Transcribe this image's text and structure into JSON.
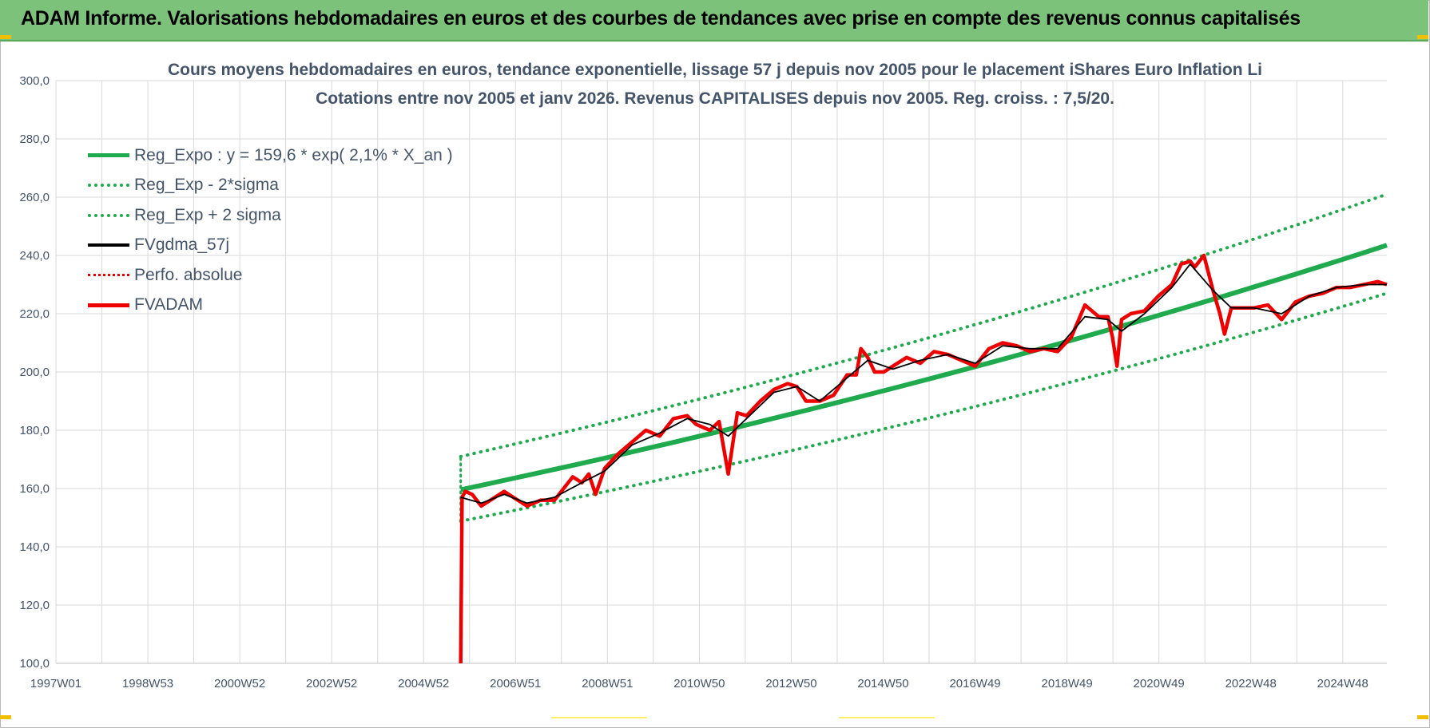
{
  "banner": {
    "title": "ADAM Informe. Valorisations hebdomadaires en euros et des courbes de tendances avec prise en compte des revenus connus capitalisés"
  },
  "colors": {
    "banner": "#7dc27b",
    "green": "#1faa4e",
    "red": "#ee0000",
    "black": "#000000",
    "grid": "#d9d9d9",
    "text": "#44546a"
  },
  "chart_data": {
    "type": "line",
    "title_line1": "Cours moyens hebdomadaires en euros, tendance exponentielle, lissage 57 j depuis nov 2005 pour le placement iShares Euro Inflation Li",
    "title_line2": "Cotations entre nov 2005 et janv 2026. Revenus CAPITALISES depuis nov 2005. Reg. croiss. : 7,5/20.",
    "x_tick_labels": [
      "1997W01",
      "1998W53",
      "2000W52",
      "2002W52",
      "2004W52",
      "2006W51",
      "2008W51",
      "2010W50",
      "2012W50",
      "2014W50",
      "2016W49",
      "2018W49",
      "2020W49",
      "2022W48",
      "2024W48"
    ],
    "x_range_years": [
      1997.0,
      2026.1
    ],
    "y_tick_labels": [
      "100,0",
      "120,0",
      "140,0",
      "160,0",
      "180,0",
      "200,0",
      "220,0",
      "240,0",
      "260,0",
      "280,0",
      "300,0"
    ],
    "ylim": [
      100,
      300
    ],
    "grid": true,
    "legend_position": "top-left",
    "legend": [
      {
        "label": "Reg_Expo : y = 159,6 * exp( 2,1% *  X_an )",
        "style": "solid",
        "color": "#1faa4e"
      },
      {
        "label": "Reg_Exp - 2*sigma",
        "style": "dotted",
        "color": "#1faa4e"
      },
      {
        "label": "Reg_Exp + 2 sigma",
        "style": "dotted",
        "color": "#1faa4e"
      },
      {
        "label": "FVgdma_57j",
        "style": "solid",
        "color": "#000000"
      },
      {
        "label": "Perfo. absolue",
        "style": "dotted",
        "color": "#ee0000"
      },
      {
        "label": "FVADAM",
        "style": "solid",
        "color": "#ee0000"
      }
    ],
    "series": [
      {
        "name": "Reg_Expo : y = 159,6 * exp( 2,1% *  X_an )",
        "x": [
          2005.85,
          2026.1
        ],
        "values": [
          159.6,
          243.5
        ]
      },
      {
        "name": "Reg_Exp - 2*sigma",
        "x": [
          2005.85,
          2026.1
        ],
        "values": [
          148.8,
          227.0
        ]
      },
      {
        "name": "Reg_Exp + 2 sigma",
        "x": [
          2005.85,
          2026.1
        ],
        "values": [
          171.0,
          261.0
        ]
      },
      {
        "name": "FVADAM",
        "x": [
          2005.85,
          2005.88,
          2005.95,
          2006.1,
          2006.3,
          2006.5,
          2006.8,
          2007.0,
          2007.3,
          2007.6,
          2007.9,
          2008.1,
          2008.3,
          2008.5,
          2008.65,
          2008.8,
          2009.0,
          2009.3,
          2009.6,
          2009.9,
          2010.2,
          2010.5,
          2010.8,
          2011.0,
          2011.3,
          2011.5,
          2011.7,
          2011.9,
          2012.1,
          2012.4,
          2012.7,
          2013.0,
          2013.2,
          2013.4,
          2013.7,
          2014.0,
          2014.3,
          2014.5,
          2014.6,
          2014.75,
          2014.9,
          2015.1,
          2015.3,
          2015.6,
          2015.9,
          2016.2,
          2016.5,
          2016.8,
          2017.1,
          2017.4,
          2017.7,
          2018.0,
          2018.3,
          2018.6,
          2018.9,
          2019.2,
          2019.5,
          2019.8,
          2020.0,
          2020.1,
          2020.2,
          2020.3,
          2020.5,
          2020.8,
          2021.1,
          2021.4,
          2021.6,
          2021.8,
          2021.9,
          2022.1,
          2022.3,
          2022.45,
          2022.55,
          2022.7,
          2022.9,
          2023.2,
          2023.5,
          2023.8,
          2024.1,
          2024.4,
          2024.7,
          2025.0,
          2025.3,
          2025.6,
          2025.9,
          2026.1
        ],
        "values": [
          100,
          157,
          159,
          158,
          154,
          156,
          159,
          157,
          154,
          156,
          156,
          160,
          164,
          162,
          165,
          158,
          167,
          172,
          176,
          180,
          178,
          184,
          185,
          182,
          180,
          183,
          165,
          186,
          185,
          190,
          194,
          196,
          195,
          190,
          190,
          192,
          199,
          199,
          208,
          205,
          200,
          200,
          202,
          205,
          203,
          207,
          206,
          204,
          202,
          208,
          210,
          209,
          207,
          208,
          207,
          212,
          223,
          219,
          219,
          212,
          202,
          218,
          220,
          221,
          226,
          230,
          237,
          238,
          236,
          240,
          228,
          220,
          213,
          222,
          222,
          222,
          223,
          218,
          224,
          226,
          227,
          229,
          229,
          230,
          231,
          230
        ]
      },
      {
        "name": "FVgdma_57j",
        "x": [
          2005.85,
          2006.3,
          2006.8,
          2007.3,
          2007.9,
          2008.5,
          2009.0,
          2009.6,
          2010.2,
          2010.8,
          2011.3,
          2011.7,
          2012.1,
          2012.7,
          2013.2,
          2013.7,
          2014.3,
          2014.75,
          2015.3,
          2015.9,
          2016.5,
          2017.1,
          2017.7,
          2018.3,
          2018.9,
          2019.5,
          2020.0,
          2020.3,
          2020.8,
          2021.4,
          2021.8,
          2022.3,
          2022.7,
          2023.2,
          2023.8,
          2024.4,
          2025.0,
          2025.6,
          2026.1
        ],
        "values": [
          157,
          155,
          158,
          155,
          157,
          162,
          166,
          175,
          179,
          184,
          182,
          178,
          184,
          193,
          195,
          190,
          198,
          204,
          201,
          204,
          206,
          203,
          209,
          208,
          208,
          219,
          218,
          214,
          220,
          229,
          237,
          228,
          222,
          222,
          220,
          226,
          229,
          230,
          230
        ]
      }
    ]
  }
}
